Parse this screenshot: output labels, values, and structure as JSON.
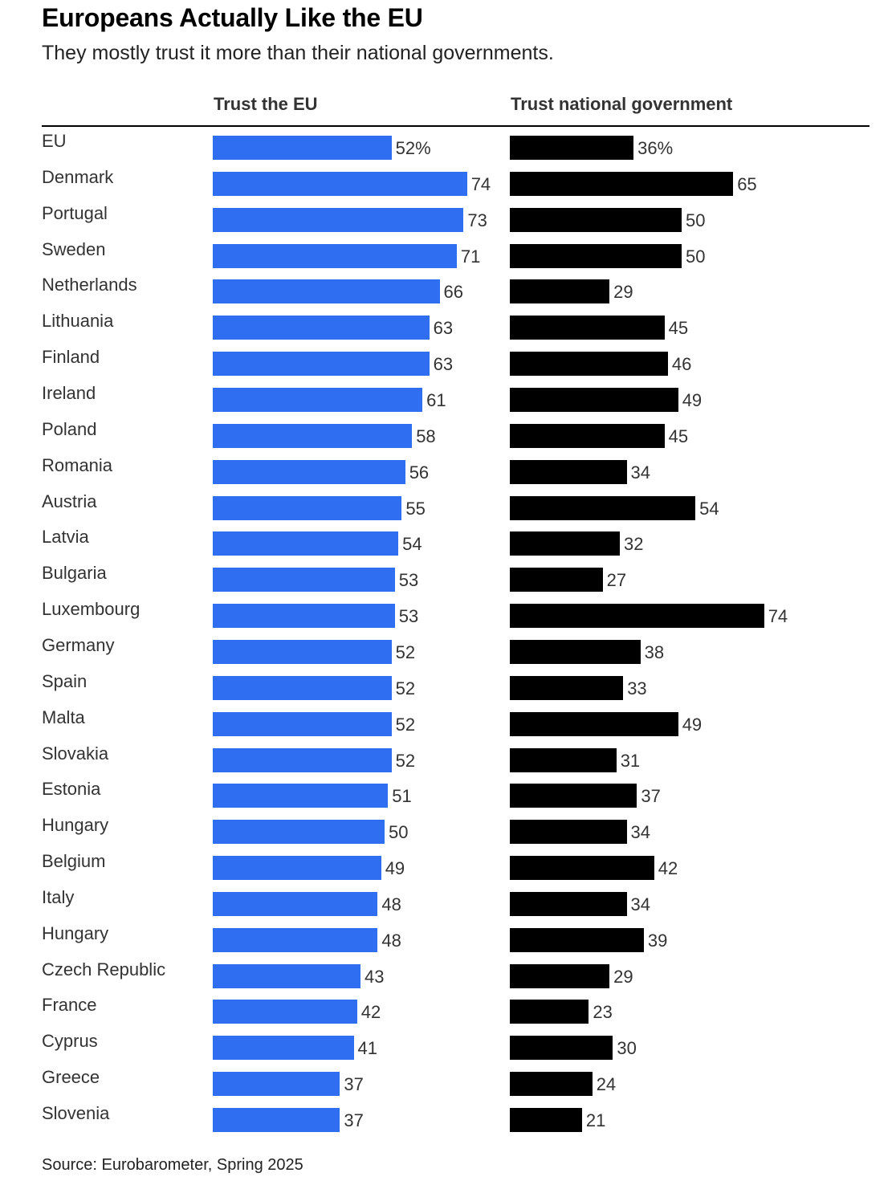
{
  "title": "Europeans Actually Like the EU",
  "subtitle": "They mostly trust it more than their national governments.",
  "source": "Source: Eurobarometer, Spring 2025",
  "colors": {
    "eu_bar": "#2f6ef0",
    "national_bar": "#000000"
  },
  "chart_data": {
    "type": "bar",
    "orientation": "horizontal",
    "title": "Europeans Actually Like the EU",
    "subtitle": "They mostly trust it more than their national governments.",
    "categories": [
      "EU",
      "Denmark",
      "Portugal",
      "Sweden",
      "Netherlands",
      "Lithuania",
      "Finland",
      "Ireland",
      "Poland",
      "Romania",
      "Austria",
      "Latvia",
      "Bulgaria",
      "Luxembourg",
      "Germany",
      "Spain",
      "Malta",
      "Slovakia",
      "Estonia",
      "Hungary",
      "Belgium",
      "Italy",
      "Hungary",
      "Czech Republic",
      "France",
      "Cyprus",
      "Greece",
      "Slovenia"
    ],
    "series": [
      {
        "name": "Trust the EU",
        "values": [
          52,
          74,
          73,
          71,
          66,
          63,
          63,
          61,
          58,
          56,
          55,
          54,
          53,
          53,
          52,
          52,
          52,
          52,
          51,
          50,
          49,
          48,
          48,
          43,
          42,
          41,
          37,
          37
        ],
        "labels": [
          "52%",
          "74",
          "73",
          "71",
          "66",
          "63",
          "63",
          "61",
          "58",
          "56",
          "55",
          "54",
          "53",
          "53",
          "52",
          "52",
          "52",
          "52",
          "51",
          "50",
          "49",
          "48",
          "48",
          "43",
          "42",
          "41",
          "37",
          "37"
        ]
      },
      {
        "name": "Trust national government",
        "values": [
          36,
          65,
          50,
          50,
          29,
          45,
          46,
          49,
          45,
          34,
          54,
          32,
          27,
          74,
          38,
          33,
          49,
          31,
          37,
          34,
          42,
          34,
          39,
          29,
          23,
          30,
          24,
          21
        ],
        "labels": [
          "36%",
          "65",
          "50",
          "50",
          "29",
          "45",
          "46",
          "49",
          "45",
          "34",
          "54",
          "32",
          "27",
          "74",
          "38",
          "33",
          "49",
          "31",
          "37",
          "34",
          "42",
          "34",
          "39",
          "29",
          "23",
          "30",
          "24",
          "21"
        ]
      }
    ],
    "unit": "%",
    "grid": false,
    "source": "Source: Eurobarometer, Spring 2025"
  }
}
